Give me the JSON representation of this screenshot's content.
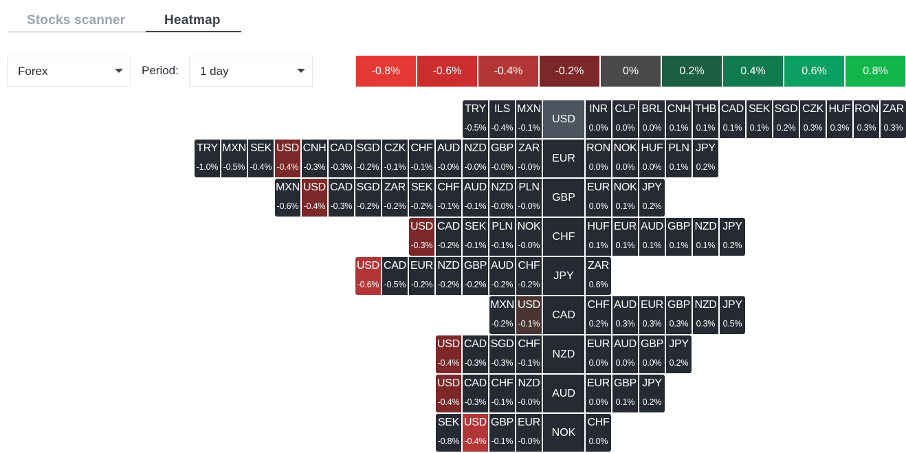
{
  "tabs": {
    "scanner": "Stocks scanner",
    "heatmap": "Heatmap"
  },
  "filters": {
    "market": "Forex",
    "period_label": "Period:",
    "period": "1 day"
  },
  "legend": [
    {
      "label": "-0.8%",
      "color": "#e53935"
    },
    {
      "label": "-0.6%",
      "color": "#cc2d2d"
    },
    {
      "label": "-0.4%",
      "color": "#b33636"
    },
    {
      "label": "-0.2%",
      "color": "#7c2828"
    },
    {
      "label": "0%",
      "color": "#4a4a4a"
    },
    {
      "label": "0.2%",
      "color": "#1b5e43"
    },
    {
      "label": "0.4%",
      "color": "#127a4f"
    },
    {
      "label": "0.6%",
      "color": "#0aa162"
    },
    {
      "label": "0.8%",
      "color": "#12b64a"
    }
  ],
  "colors": {
    "cell_default": "#252a33",
    "base_highlight": "#4a5560",
    "neg_strong": "#b33636",
    "neg_mid": "#7c2828",
    "neg_light": "#4a3532"
  },
  "rows": [
    {
      "base": "USD",
      "highlight": true,
      "left": [
        {
          "c": "TRY",
          "v": "-0.5%"
        },
        {
          "c": "ILS",
          "v": "-0.4%"
        },
        {
          "c": "MXN",
          "v": "-0.1%"
        }
      ],
      "right": [
        {
          "c": "INR",
          "v": "0.0%"
        },
        {
          "c": "CLP",
          "v": "0.0%"
        },
        {
          "c": "BRL",
          "v": "0.0%"
        },
        {
          "c": "CNH",
          "v": "0.1%"
        },
        {
          "c": "THB",
          "v": "0.1%"
        },
        {
          "c": "CAD",
          "v": "0.1%"
        },
        {
          "c": "SEK",
          "v": "0.1%"
        },
        {
          "c": "SGD",
          "v": "0.2%"
        },
        {
          "c": "CZK",
          "v": "0.3%"
        },
        {
          "c": "HUF",
          "v": "0.3%"
        },
        {
          "c": "RON",
          "v": "0.3%"
        },
        {
          "c": "ZAR",
          "v": "0.3%"
        }
      ]
    },
    {
      "base": "EUR",
      "left": [
        {
          "c": "TRY",
          "v": "-1.0%"
        },
        {
          "c": "MXN",
          "v": "-0.5%"
        },
        {
          "c": "SEK",
          "v": "-0.4%"
        },
        {
          "c": "USD",
          "v": "-0.4%",
          "color": "#7c2828"
        },
        {
          "c": "CNH",
          "v": "-0.3%"
        },
        {
          "c": "CAD",
          "v": "-0.3%"
        },
        {
          "c": "SGD",
          "v": "-0.2%"
        },
        {
          "c": "CZK",
          "v": "-0.1%"
        },
        {
          "c": "CHF",
          "v": "-0.1%"
        },
        {
          "c": "AUD",
          "v": "-0.0%"
        },
        {
          "c": "NZD",
          "v": "-0.0%"
        },
        {
          "c": "GBP",
          "v": "-0.0%"
        },
        {
          "c": "ZAR",
          "v": "-0.0%"
        }
      ],
      "right": [
        {
          "c": "RON",
          "v": "0.0%"
        },
        {
          "c": "NOK",
          "v": "0.0%"
        },
        {
          "c": "HUF",
          "v": "0.0%"
        },
        {
          "c": "PLN",
          "v": "0.1%"
        },
        {
          "c": "JPY",
          "v": "0.2%"
        }
      ]
    },
    {
      "base": "GBP",
      "left": [
        {
          "c": "MXN",
          "v": "-0.6%"
        },
        {
          "c": "USD",
          "v": "-0.4%",
          "color": "#7c2828"
        },
        {
          "c": "CAD",
          "v": "-0.3%"
        },
        {
          "c": "SGD",
          "v": "-0.2%"
        },
        {
          "c": "ZAR",
          "v": "-0.2%"
        },
        {
          "c": "SEK",
          "v": "-0.2%"
        },
        {
          "c": "CHF",
          "v": "-0.1%"
        },
        {
          "c": "AUD",
          "v": "-0.1%"
        },
        {
          "c": "NZD",
          "v": "-0.0%"
        },
        {
          "c": "PLN",
          "v": "-0.0%"
        }
      ],
      "right": [
        {
          "c": "EUR",
          "v": "0.0%"
        },
        {
          "c": "NOK",
          "v": "0.1%"
        },
        {
          "c": "JPY",
          "v": "0.2%"
        }
      ]
    },
    {
      "base": "CHF",
      "left": [
        {
          "c": "USD",
          "v": "-0.3%",
          "color": "#7c2828"
        },
        {
          "c": "CAD",
          "v": "-0.2%"
        },
        {
          "c": "SEK",
          "v": "-0.1%"
        },
        {
          "c": "PLN",
          "v": "-0.1%"
        },
        {
          "c": "NOK",
          "v": "-0.0%"
        }
      ],
      "right": [
        {
          "c": "HUF",
          "v": "0.1%"
        },
        {
          "c": "EUR",
          "v": "0.1%"
        },
        {
          "c": "AUD",
          "v": "0.1%"
        },
        {
          "c": "GBP",
          "v": "0.1%"
        },
        {
          "c": "NZD",
          "v": "0.1%"
        },
        {
          "c": "JPY",
          "v": "0.2%"
        }
      ]
    },
    {
      "base": "JPY",
      "left": [
        {
          "c": "USD",
          "v": "-0.6%",
          "color": "#b33636"
        },
        {
          "c": "CAD",
          "v": "-0.5%"
        },
        {
          "c": "EUR",
          "v": "-0.2%"
        },
        {
          "c": "NZD",
          "v": "-0.2%"
        },
        {
          "c": "GBP",
          "v": "-0.2%"
        },
        {
          "c": "AUD",
          "v": "-0.2%"
        },
        {
          "c": "CHF",
          "v": "-0.2%"
        }
      ],
      "right": [
        {
          "c": "ZAR",
          "v": "0.6%"
        }
      ]
    },
    {
      "base": "CAD",
      "left": [
        {
          "c": "MXN",
          "v": "-0.2%"
        },
        {
          "c": "USD",
          "v": "-0.1%",
          "color": "#4a3532"
        }
      ],
      "right": [
        {
          "c": "CHF",
          "v": "0.2%"
        },
        {
          "c": "AUD",
          "v": "0.3%"
        },
        {
          "c": "EUR",
          "v": "0.3%"
        },
        {
          "c": "GBP",
          "v": "0.3%"
        },
        {
          "c": "NZD",
          "v": "0.3%"
        },
        {
          "c": "JPY",
          "v": "0.5%"
        }
      ]
    },
    {
      "base": "NZD",
      "left": [
        {
          "c": "USD",
          "v": "-0.4%",
          "color": "#7c2828"
        },
        {
          "c": "CAD",
          "v": "-0.3%"
        },
        {
          "c": "SGD",
          "v": "-0.3%"
        },
        {
          "c": "CHF",
          "v": "-0.1%"
        }
      ],
      "right": [
        {
          "c": "EUR",
          "v": "0.0%"
        },
        {
          "c": "AUD",
          "v": "0.0%"
        },
        {
          "c": "GBP",
          "v": "0.0%"
        },
        {
          "c": "JPY",
          "v": "0.2%"
        }
      ]
    },
    {
      "base": "AUD",
      "left": [
        {
          "c": "USD",
          "v": "-0.4%",
          "color": "#7c2828"
        },
        {
          "c": "CAD",
          "v": "-0.3%"
        },
        {
          "c": "CHF",
          "v": "-0.1%"
        },
        {
          "c": "NZD",
          "v": "-0.0%"
        }
      ],
      "right": [
        {
          "c": "EUR",
          "v": "0.0%"
        },
        {
          "c": "GBP",
          "v": "0.1%"
        },
        {
          "c": "JPY",
          "v": "0.2%"
        }
      ]
    },
    {
      "base": "NOK",
      "left": [
        {
          "c": "SEK",
          "v": "-0.8%"
        },
        {
          "c": "USD",
          "v": "-0.4%",
          "color": "#b33636"
        },
        {
          "c": "GBP",
          "v": "-0.1%"
        },
        {
          "c": "EUR",
          "v": "-0.0%"
        }
      ],
      "right": [
        {
          "c": "CHF",
          "v": "0.0%"
        }
      ]
    }
  ]
}
